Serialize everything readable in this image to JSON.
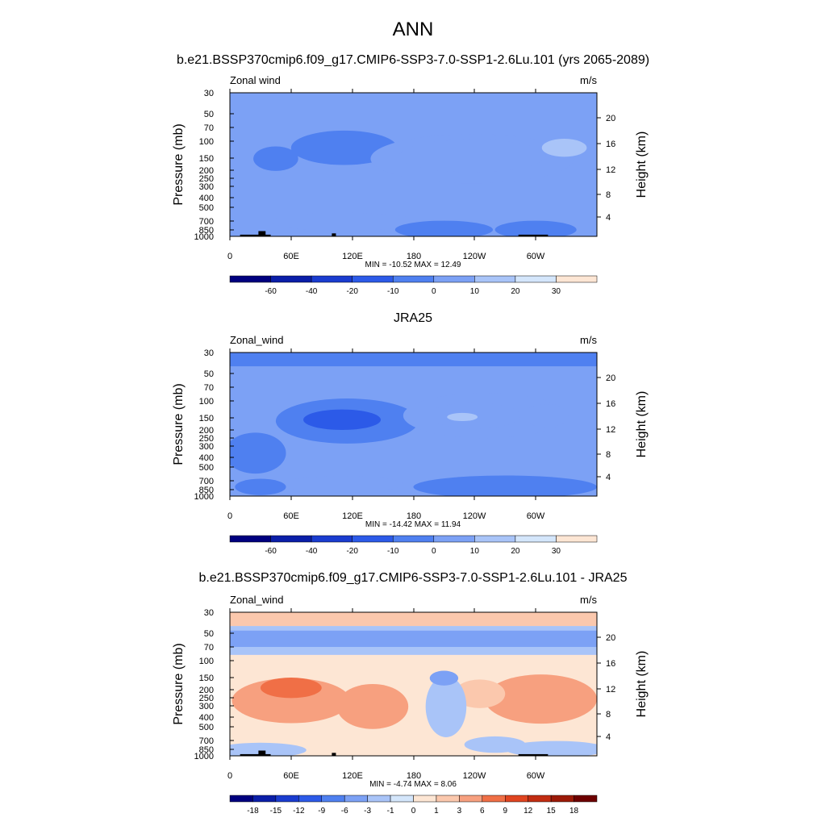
{
  "figure": {
    "title": "ANN",
    "subtitle": "b.e21.BSSP370cmip6.f09_g17.CMIP6-SSP3-7.0-SSP1-2.6Lu.101 (yrs 2065-2089)"
  },
  "chart_data": [
    {
      "type": "heatmap",
      "title": "",
      "left_label": "Zonal wind",
      "right_label": "m/s",
      "xlabel": "",
      "ylabel": "Pressure (mb)",
      "ylabel_right": "Height (km)",
      "x_ticks": [
        "0",
        "60E",
        "120E",
        "180",
        "120W",
        "60W"
      ],
      "y_ticks": [
        "30",
        "50",
        "70",
        "100",
        "150",
        "200",
        "250",
        "300",
        "400",
        "500",
        "700",
        "850",
        "1000"
      ],
      "y_right_ticks": [
        "20",
        "16",
        "12",
        "8",
        "4"
      ],
      "stats": "MIN = -10.52  MAX =  12.49",
      "min": -10.52,
      "max": 12.49,
      "colorbar_levels": [
        "-60",
        "-40",
        "-20",
        "-10",
        "0",
        "10",
        "20",
        "30"
      ],
      "features": [
        {
          "shape": "ellipse",
          "value": -5,
          "lon": 112,
          "p": 115,
          "a": 52,
          "b": 0.42
        },
        {
          "shape": "ellipse",
          "value": -5,
          "lon": 45,
          "p": 150,
          "a": 22,
          "b": 0.3
        },
        {
          "shape": "ellipse",
          "value": 5,
          "lon": 112,
          "p": 700,
          "a": 72,
          "b": 0.22
        },
        {
          "shape": "ellipse",
          "value": 5,
          "lon": 238,
          "p": 150,
          "a": 100,
          "b": 0.6
        },
        {
          "shape": "ellipse",
          "value": 10,
          "lon": 238,
          "p": 140,
          "a": 72,
          "b": 0.4
        },
        {
          "shape": "ellipse",
          "value": 12,
          "lon": 328,
          "p": 115,
          "a": 22,
          "b": 0.22
        },
        {
          "shape": "ellipse",
          "value": -5,
          "lon": 210,
          "p": 850,
          "a": 48,
          "b": 0.22
        },
        {
          "shape": "ellipse",
          "value": -5,
          "lon": 300,
          "p": 850,
          "a": 40,
          "b": 0.22
        }
      ],
      "topography": [
        {
          "lon0": 10,
          "lon1": 40,
          "p": 960
        },
        {
          "lon0": 28,
          "lon1": 35,
          "p": 880
        },
        {
          "lon0": 100,
          "lon1": 104,
          "p": 930
        },
        {
          "lon0": 283,
          "lon1": 312,
          "p": 960
        }
      ]
    },
    {
      "type": "heatmap",
      "title": "JRA25",
      "left_label": "Zonal_wind",
      "right_label": "m/s",
      "xlabel": "",
      "ylabel": "Pressure (mb)",
      "ylabel_right": "Height (km)",
      "x_ticks": [
        "0",
        "60E",
        "120E",
        "180",
        "120W",
        "60W"
      ],
      "y_ticks": [
        "30",
        "50",
        "70",
        "100",
        "150",
        "200",
        "250",
        "300",
        "400",
        "500",
        "700",
        "850",
        "1000"
      ],
      "y_right_ticks": [
        "20",
        "16",
        "12",
        "8",
        "4"
      ],
      "stats": "MIN = -14.42  MAX =  11.94",
      "min": -14.42,
      "max": 11.94,
      "colorbar_levels": [
        "-60",
        "-40",
        "-20",
        "-10",
        "0",
        "10",
        "20",
        "30"
      ],
      "features": [
        {
          "shape": "band",
          "value": -5,
          "p0": 30,
          "p1": 42
        },
        {
          "shape": "ellipse",
          "value": -5,
          "lon": 115,
          "p": 160,
          "a": 70,
          "b": 0.55
        },
        {
          "shape": "ellipse",
          "value": -10,
          "lon": 110,
          "p": 155,
          "a": 38,
          "b": 0.25
        },
        {
          "shape": "ellipse",
          "value": -5,
          "lon": 25,
          "p": 350,
          "a": 30,
          "b": 0.5
        },
        {
          "shape": "ellipse",
          "value": 5,
          "lon": 250,
          "p": 140,
          "a": 80,
          "b": 0.55
        },
        {
          "shape": "ellipse",
          "value": 10,
          "lon": 240,
          "p": 140,
          "a": 45,
          "b": 0.32
        },
        {
          "shape": "ellipse",
          "value": 15,
          "lon": 228,
          "p": 145,
          "a": 15,
          "b": 0.1
        },
        {
          "shape": "ellipse",
          "value": 10,
          "lon": 310,
          "p": 140,
          "a": 22,
          "b": 0.28
        },
        {
          "shape": "ellipse",
          "value": 5,
          "lon": 110,
          "p": 750,
          "a": 60,
          "b": 0.2
        },
        {
          "shape": "ellipse",
          "value": -5,
          "lon": 270,
          "p": 800,
          "a": 90,
          "b": 0.28
        },
        {
          "shape": "ellipse",
          "value": -5,
          "lon": 30,
          "p": 800,
          "a": 25,
          "b": 0.2
        }
      ]
    },
    {
      "type": "heatmap",
      "title": "b.e21.BSSP370cmip6.f09_g17.CMIP6-SSP3-7.0-SSP1-2.6Lu.101 - JRA25",
      "left_label": "Zonal_wind",
      "right_label": "m/s",
      "xlabel": "",
      "ylabel": "Pressure (mb)",
      "ylabel_right": "Height (km)",
      "x_ticks": [
        "0",
        "60E",
        "120E",
        "180",
        "120W",
        "60W"
      ],
      "y_ticks": [
        "30",
        "50",
        "70",
        "100",
        "150",
        "200",
        "250",
        "300",
        "400",
        "500",
        "700",
        "850",
        "1000"
      ],
      "y_right_ticks": [
        "20",
        "16",
        "12",
        "8",
        "4"
      ],
      "stats": "MIN =  -4.74  MAX =   8.06",
      "min": -4.74,
      "max": 8.06,
      "colorbar_levels": [
        "-18",
        "-15",
        "-12",
        "-9",
        "-6",
        "-3",
        "-1",
        "0",
        "1",
        "3",
        "6",
        "9",
        "12",
        "15",
        "18"
      ],
      "features": [
        {
          "shape": "band",
          "value": 2,
          "p0": 30,
          "p1": 42
        },
        {
          "shape": "band",
          "value": -2,
          "p0": 42,
          "p1": 85
        },
        {
          "shape": "band",
          "value": -4,
          "p0": 47,
          "p1": 70
        },
        {
          "shape": "ellipse",
          "value": 4,
          "lon": 60,
          "p": 260,
          "a": 58,
          "b": 0.55
        },
        {
          "shape": "ellipse",
          "value": 7,
          "lon": 60,
          "p": 190,
          "a": 30,
          "b": 0.25
        },
        {
          "shape": "ellipse",
          "value": 4,
          "lon": 140,
          "p": 300,
          "a": 35,
          "b": 0.55
        },
        {
          "shape": "ellipse",
          "value": 4,
          "lon": 305,
          "p": 250,
          "a": 55,
          "b": 0.6
        },
        {
          "shape": "ellipse",
          "value": 2,
          "lon": 245,
          "p": 220,
          "a": 25,
          "b": 0.35
        },
        {
          "shape": "ellipse",
          "value": -2,
          "lon": 212,
          "p": 300,
          "a": 20,
          "b": 0.75
        },
        {
          "shape": "ellipse",
          "value": -4,
          "lon": 210,
          "p": 150,
          "a": 14,
          "b": 0.18
        },
        {
          "shape": "ellipse",
          "value": -1,
          "lon": 260,
          "p": 760,
          "a": 30,
          "b": 0.2
        },
        {
          "shape": "ellipse",
          "value": -2,
          "lon": 30,
          "p": 870,
          "a": 45,
          "b": 0.18
        },
        {
          "shape": "ellipse",
          "value": -1,
          "lon": 320,
          "p": 850,
          "a": 50,
          "b": 0.2
        }
      ],
      "topography": [
        {
          "lon0": 10,
          "lon1": 40,
          "p": 960
        },
        {
          "lon0": 28,
          "lon1": 35,
          "p": 880
        },
        {
          "lon0": 100,
          "lon1": 104,
          "p": 930
        },
        {
          "lon0": 283,
          "lon1": 312,
          "p": 960
        }
      ]
    }
  ],
  "colors": {
    "palette": [
      "#00007f",
      "#0a1ea8",
      "#1a3ccf",
      "#2c5ae8",
      "#4f80f0",
      "#7ca1f5",
      "#a9c4f8",
      "#d4e6fb",
      "#fde6d4",
      "#fbc8ad",
      "#f7a07f",
      "#f06f46",
      "#e04520",
      "#c22d12",
      "#9c1a08",
      "#6e0000"
    ],
    "topography": "#000000"
  }
}
